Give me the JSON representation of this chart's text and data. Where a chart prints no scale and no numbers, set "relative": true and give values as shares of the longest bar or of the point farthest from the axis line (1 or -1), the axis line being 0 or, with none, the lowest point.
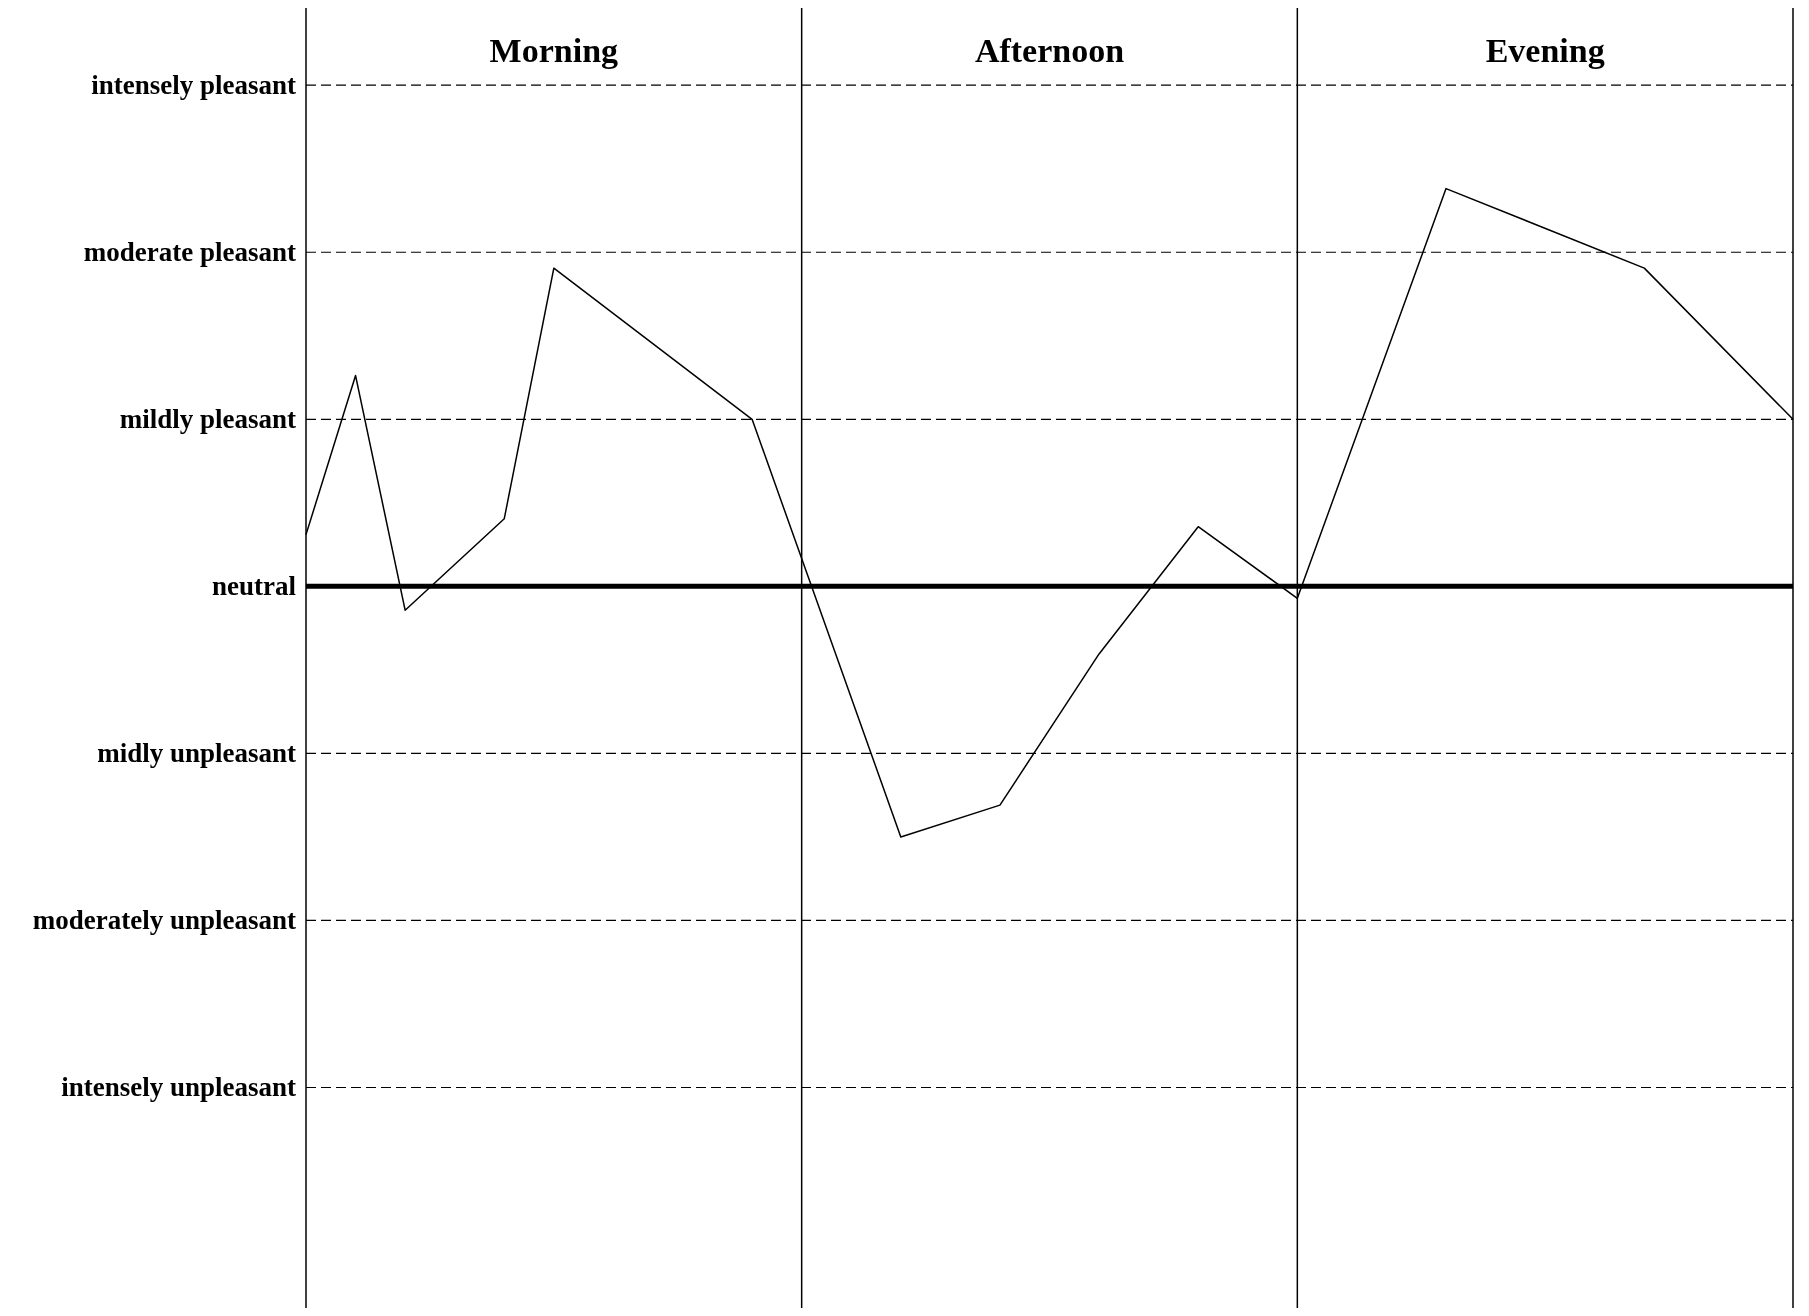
{
  "chart_data": {
    "type": "line",
    "relative": true,
    "categories": [
      null,
      null,
      null,
      null,
      null,
      "Morning",
      null,
      null,
      null,
      null,
      null,
      null,
      null,
      null,
      null,
      "Afternoon",
      null,
      null,
      null,
      null,
      null,
      null,
      null,
      null,
      null,
      "Evening",
      null,
      null,
      null,
      null,
      null
    ],
    "series": [
      {
        "color": "#000000",
        "values": [
          0.13,
          0.53,
          -0.06,
          null,
          0.17,
          0.8,
          null,
          null,
          null,
          0.42,
          null,
          null,
          -0.63,
          null,
          -0.55,
          null,
          -0.17,
          null,
          0.15,
          null,
          -0.03,
          null,
          null,
          1,
          null,
          null,
          null,
          0.8,
          null,
          null,
          0.42
        ]
      }
    ],
    "ref_lines": [
      {
        "axis": "y",
        "value": 1.26,
        "label": "intensely pleasant",
        "line_style": "dashed"
      },
      {
        "axis": "y",
        "value": 0.84,
        "label": "moderate pleasant",
        "line_style": "dashed"
      },
      {
        "axis": "y",
        "value": 0.42,
        "label": "mildly pleasant",
        "line_style": "dashed"
      },
      {
        "axis": "y",
        "value": 0,
        "label": "neutral",
        "color": "#000000",
        "line_style": "solid"
      },
      {
        "axis": "y",
        "value": -0.42,
        "label": "midly unpleasant",
        "line_style": "dashed"
      },
      {
        "axis": "y",
        "value": -0.84,
        "label": "moderately unpleasant",
        "line_style": "dashed"
      },
      {
        "axis": "y",
        "value": -1.26,
        "label": "intensely unpleasant",
        "line_style": "dashed"
      },
      {
        "axis": "x",
        "color": "#000000",
        "line_style": "solid"
      },
      {
        "axis": "x",
        "color": "#000000",
        "line_style": "solid"
      }
    ],
    "marker": "none",
    "line_style": "solid"
  }
}
